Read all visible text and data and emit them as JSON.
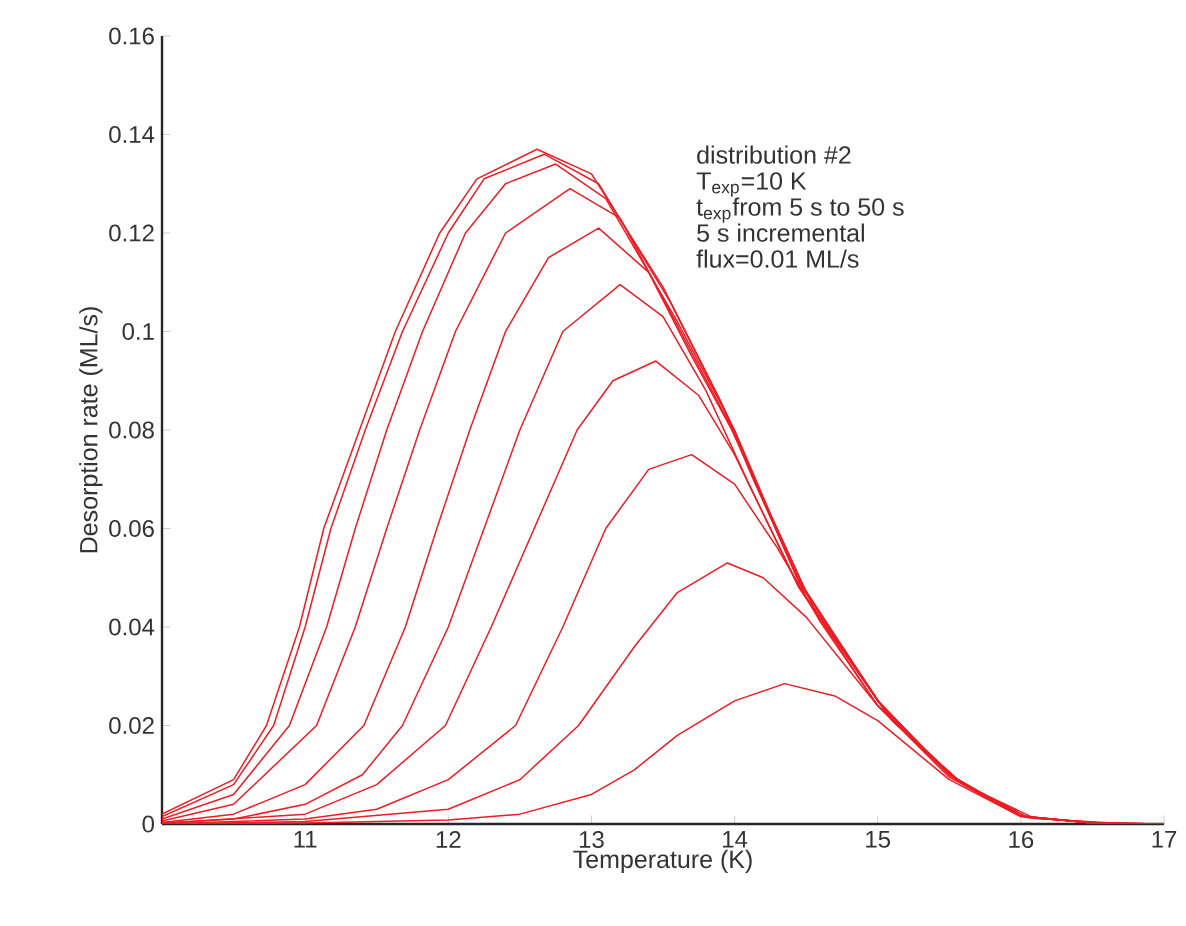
{
  "chart_data": {
    "type": "line",
    "xlabel": "Temperature (K)",
    "ylabel": "Desorption rate (ML/s)",
    "annotations": [
      "distribution #2",
      "T$_{exp}$=10 K",
      "t$_{exp}$from 5 s to 50 s",
      "5 s incremental",
      "flux=0.01 ML/s"
    ],
    "xlim": [
      10,
      17
    ],
    "ylim": [
      0,
      0.16
    ],
    "xticks": [
      11,
      12,
      13,
      14,
      15,
      16,
      17
    ],
    "yticks": [
      0,
      0.02,
      0.04,
      0.06,
      0.08,
      0.1,
      0.12,
      0.14,
      0.16
    ],
    "marker": "none",
    "line_style": "solid",
    "series": [
      {
        "color": "#ee1c24",
        "x": [
          10,
          10.5,
          10.73,
          10.96,
          11.13,
          11.38,
          11.63,
          11.94,
          12.2,
          12.62,
          13.0,
          13.5,
          13.9,
          14.13,
          14.45,
          15,
          15.5,
          16,
          16.5,
          17
        ],
        "values": [
          0.002,
          0.009,
          0.02,
          0.04,
          0.06,
          0.08,
          0.1,
          0.12,
          0.131,
          0.137,
          0.132,
          0.109,
          0.086,
          0.07,
          0.0495,
          0.025,
          0.01,
          0.0016,
          0.0002,
          0
        ]
      },
      {
        "color": "#ee1c24",
        "x": [
          10,
          10.5,
          10.78,
          11.0,
          11.18,
          11.42,
          11.68,
          12.0,
          12.25,
          12.67,
          13.05,
          13.55,
          13.95,
          14.2,
          14.5,
          15.05,
          15.55,
          16.05,
          16.6,
          17
        ],
        "values": [
          0.0015,
          0.008,
          0.02,
          0.04,
          0.06,
          0.08,
          0.1,
          0.12,
          0.131,
          0.136,
          0.13,
          0.106,
          0.083,
          0.066,
          0.047,
          0.023,
          0.009,
          0.0013,
          0.0001,
          0
        ]
      },
      {
        "color": "#ee1c24",
        "x": [
          10,
          10.5,
          10.89,
          11.15,
          11.35,
          11.57,
          11.82,
          12.12,
          12.4,
          12.75,
          13.1,
          13.6,
          14.0,
          14.25,
          14.55,
          15.1,
          15.6,
          16.1,
          16.7,
          17
        ],
        "values": [
          0.001,
          0.006,
          0.02,
          0.04,
          0.06,
          0.08,
          0.1,
          0.12,
          0.13,
          0.134,
          0.127,
          0.102,
          0.08,
          0.063,
          0.044,
          0.021,
          0.008,
          0.0011,
          0.0001,
          0
        ]
      },
      {
        "color": "#ee1c24",
        "x": [
          10,
          10.5,
          11.08,
          11.35,
          11.57,
          11.8,
          12.05,
          12.4,
          12.85,
          13.2,
          13.55,
          13.95,
          14.2,
          14.5,
          15.05,
          15.55,
          16.05,
          16.6,
          17
        ],
        "values": [
          0.0006,
          0.004,
          0.02,
          0.04,
          0.06,
          0.08,
          0.1,
          0.12,
          0.129,
          0.123,
          0.104,
          0.082,
          0.066,
          0.046,
          0.023,
          0.009,
          0.0013,
          0.0001,
          0
        ]
      },
      {
        "color": "#ee1c24",
        "x": [
          10,
          10.5,
          11,
          11.41,
          11.7,
          11.92,
          12.15,
          12.4,
          12.7,
          13.05,
          13.4,
          13.7,
          14.0,
          14.45,
          15,
          15.5,
          16,
          16.5,
          17
        ],
        "values": [
          0.0003,
          0.002,
          0.008,
          0.02,
          0.04,
          0.06,
          0.08,
          0.1,
          0.115,
          0.121,
          0.112,
          0.095,
          0.079,
          0.049,
          0.025,
          0.01,
          0.0016,
          0.0002,
          0
        ]
      },
      {
        "color": "#ee1c24",
        "x": [
          10,
          10.5,
          11,
          11.4,
          11.68,
          12.0,
          12.25,
          12.5,
          12.8,
          13.2,
          13.5,
          13.8,
          14.1,
          14.45,
          15,
          15.5,
          16,
          16.5,
          17
        ],
        "values": [
          0.0002,
          0.001,
          0.004,
          0.01,
          0.02,
          0.04,
          0.06,
          0.08,
          0.1,
          0.1095,
          0.103,
          0.088,
          0.069,
          0.048,
          0.025,
          0.01,
          0.0016,
          0.0002,
          0
        ]
      },
      {
        "color": "#ee1c24",
        "x": [
          10,
          11,
          11.5,
          11.98,
          12.3,
          12.6,
          12.9,
          13.15,
          13.45,
          13.75,
          14.0,
          14.45,
          15,
          15.5,
          16,
          16.5,
          17
        ],
        "values": [
          0.0001,
          0.002,
          0.008,
          0.02,
          0.04,
          0.06,
          0.08,
          0.09,
          0.094,
          0.087,
          0.075,
          0.048,
          0.024,
          0.01,
          0.0016,
          0.0002,
          0
        ]
      },
      {
        "color": "#ee1c24",
        "x": [
          10,
          11,
          11.5,
          12,
          12.47,
          12.8,
          13.1,
          13.4,
          13.7,
          14.0,
          14.3,
          14.6,
          15,
          15.5,
          16,
          16.5,
          17
        ],
        "values": [
          0,
          0.001,
          0.003,
          0.009,
          0.02,
          0.04,
          0.06,
          0.072,
          0.075,
          0.069,
          0.056,
          0.041,
          0.024,
          0.01,
          0.0016,
          0.0002,
          0
        ]
      },
      {
        "color": "#ee1c24",
        "x": [
          10,
          11,
          12,
          12.5,
          12.91,
          13.3,
          13.6,
          13.95,
          14.2,
          14.5,
          15,
          15.5,
          16,
          16.5,
          17
        ],
        "values": [
          0,
          0.0005,
          0.003,
          0.009,
          0.02,
          0.036,
          0.047,
          0.053,
          0.05,
          0.042,
          0.024,
          0.0095,
          0.0015,
          0.0002,
          0
        ]
      },
      {
        "color": "#ee1c24",
        "x": [
          10,
          11,
          12,
          12.5,
          13,
          13.3,
          13.6,
          14,
          14.35,
          14.7,
          15,
          15.5,
          16,
          16.5,
          17
        ],
        "values": [
          0,
          0.0002,
          0.0008,
          0.002,
          0.006,
          0.011,
          0.018,
          0.025,
          0.0285,
          0.026,
          0.021,
          0.009,
          0.0015,
          0.0002,
          0
        ]
      }
    ]
  }
}
